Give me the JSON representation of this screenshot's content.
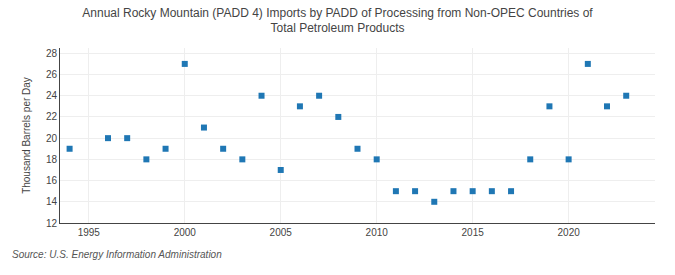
{
  "chart_data": {
    "type": "scatter",
    "title": "Annual Rocky Mountain (PADD 4) Imports by PADD of Processing from Non-OPEC Countries of\nTotal Petroleum Products",
    "ylabel": "Thousand Barrels per Day",
    "annotations": [
      "Source: U.S. Energy Information Administration"
    ],
    "x": [
      1994,
      1996,
      1997,
      1998,
      1999,
      2000,
      2001,
      2002,
      2003,
      2004,
      2005,
      2006,
      2007,
      2008,
      2009,
      2010,
      2011,
      2012,
      2013,
      2014,
      2015,
      2016,
      2017,
      2018,
      2019,
      2020,
      2021,
      2022,
      2023
    ],
    "values": [
      19,
      20,
      20,
      18,
      19,
      27,
      21,
      19,
      18,
      24,
      17,
      23,
      24,
      22,
      19,
      18,
      15,
      15,
      14,
      15,
      15,
      15,
      15,
      18,
      23,
      18,
      27,
      23,
      24
    ],
    "marker": "square",
    "xlim": [
      1993.5,
      2024.5
    ],
    "xticks": [
      1995,
      2000,
      2005,
      2010,
      2015,
      2020
    ],
    "ylim": [
      12,
      28.5
    ],
    "yticks": [
      12,
      14,
      16,
      18,
      20,
      22,
      24,
      26,
      28
    ],
    "grid": true
  }
}
